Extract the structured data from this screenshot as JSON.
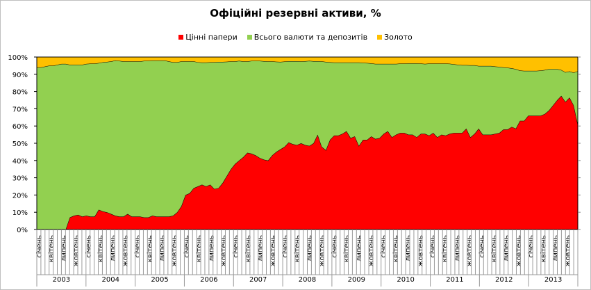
{
  "chart_data": {
    "type": "area",
    "stacked": "percent",
    "title": "Офіційні резервні активи, %",
    "xlabel": "",
    "ylabel": "",
    "ylim": [
      0,
      100
    ],
    "y_ticks": [
      "0%",
      "10%",
      "20%",
      "30%",
      "40%",
      "50%",
      "60%",
      "70%",
      "80%",
      "90%",
      "100%"
    ],
    "month_tick_labels": [
      "січень",
      "квітень",
      "липень",
      "жовтень"
    ],
    "years": [
      "2003",
      "2004",
      "2005",
      "2006",
      "2007",
      "2008",
      "2009",
      "2010",
      "2011",
      "2012",
      "2013"
    ],
    "legend_position": "top",
    "series": [
      {
        "name": "Цінні папери",
        "color": "#FF0000",
        "values": [
          0,
          0,
          0,
          0,
          0,
          0,
          0,
          0,
          7,
          8,
          8.5,
          7.5,
          8,
          7.5,
          7.5,
          11.5,
          10.5,
          10,
          9,
          8,
          7.5,
          7.5,
          9,
          7.5,
          7.5,
          7.5,
          7,
          7,
          8,
          7.5,
          7.5,
          7.5,
          7.5,
          8,
          10,
          13.5,
          20,
          21,
          24,
          25,
          26,
          25,
          26,
          23.5,
          24,
          27,
          31,
          35,
          38,
          40,
          42,
          44.5,
          44,
          43,
          41.5,
          40.5,
          40,
          43,
          45,
          46.5,
          48,
          50.5,
          49.5,
          49,
          50,
          49,
          48.5,
          50,
          55,
          48,
          46,
          52,
          54.5,
          54.5,
          55.5,
          57,
          53,
          54,
          48.5,
          52,
          52,
          54,
          52.5,
          53,
          55.5,
          57,
          53.5,
          55,
          56,
          56,
          55,
          55,
          53.5,
          55.5,
          55.5,
          54.5,
          56,
          53.5,
          55,
          54.5,
          55.5,
          56,
          56,
          56,
          58.5,
          53.5,
          55.5,
          58.5,
          55,
          55,
          55,
          55.5,
          56,
          58,
          58,
          59.5,
          58.5,
          63,
          63,
          66,
          66,
          66,
          66,
          67,
          69,
          72,
          75,
          77.5,
          74,
          76.5,
          72,
          61
        ]
      },
      {
        "name": "Всього валюти та депозитів",
        "color": "#92D050",
        "values": [
          94,
          94,
          94.5,
          95,
          95,
          95.5,
          96,
          96,
          88.5,
          87.5,
          87,
          88,
          88,
          88.7,
          88.7,
          85,
          86.5,
          87.2,
          88.5,
          90,
          90.3,
          90,
          88.5,
          90,
          90,
          90,
          90.8,
          90.8,
          90,
          90.5,
          90.5,
          90.5,
          90,
          89,
          87,
          84,
          77.5,
          76.5,
          73.5,
          72,
          70.8,
          71.8,
          71,
          73.5,
          73.2,
          70.2,
          66.3,
          62.5,
          59.5,
          57.8,
          55.5,
          53,
          53.8,
          54.8,
          56.3,
          57.1,
          57.5,
          54.5,
          52.3,
          50.7,
          49.4,
          47.1,
          48.1,
          48.6,
          47.5,
          48.6,
          49.3,
          47.6,
          42.6,
          49.5,
          51.2,
          45,
          42.3,
          42.3,
          41.3,
          39.8,
          43.8,
          42.8,
          48.3,
          44.6,
          44.5,
          42.3,
          43.5,
          43,
          40.5,
          39,
          42.5,
          41,
          40.2,
          40.2,
          41.3,
          41.3,
          42.8,
          40.7,
          40.5,
          41.7,
          40.2,
          42.7,
          41.2,
          41.7,
          40.6,
          39.8,
          39.5,
          39.3,
          36.8,
          41.7,
          39.7,
          36.3,
          39.8,
          39.8,
          39.8,
          39,
          38.3,
          36,
          35.8,
          34,
          34.5,
          29.2,
          29,
          26,
          26,
          26,
          26.2,
          25.5,
          24,
          21,
          18,
          15,
          17.2,
          15.2,
          19,
          30.8
        ]
      },
      {
        "name": "Золото",
        "color": "#FFC000",
        "values": [
          6,
          6,
          5.5,
          5,
          5,
          4.5,
          4,
          4,
          4.5,
          4.5,
          4.5,
          4.5,
          4,
          3.8,
          3.8,
          3.5,
          3,
          2.8,
          2.5,
          2,
          2.2,
          2.5,
          2.5,
          2.5,
          2.5,
          2.5,
          2.2,
          2.2,
          2,
          2,
          2,
          2,
          2.5,
          3,
          3,
          2.5,
          2.5,
          2.5,
          2.5,
          3,
          3.2,
          3.2,
          3,
          3,
          2.8,
          2.8,
          2.7,
          2.5,
          2.5,
          2.2,
          2.5,
          2.5,
          2.2,
          2.2,
          2.2,
          2.4,
          2.5,
          2.5,
          2.7,
          2.8,
          2.6,
          2.4,
          2.4,
          2.4,
          2.5,
          2.4,
          2.2,
          2.4,
          2.4,
          2.5,
          2.8,
          3,
          3.2,
          3.2,
          3.2,
          3.2,
          3.2,
          3.2,
          3.2,
          3.4,
          3.5,
          3.7,
          4,
          4,
          4,
          4,
          4,
          4,
          3.8,
          3.8,
          3.7,
          3.7,
          3.7,
          3.8,
          4,
          3.8,
          3.8,
          3.8,
          3.8,
          3.8,
          3.9,
          4.2,
          4.5,
          4.7,
          4.7,
          4.8,
          4.8,
          5.2,
          5.2,
          5.2,
          5.2,
          5.5,
          5.7,
          6,
          6.2,
          6.5,
          7,
          7.8,
          8,
          8,
          8,
          8,
          7.8,
          7.5,
          7,
          7,
          7,
          7.5,
          8.8,
          8.3,
          9,
          8.2
        ]
      }
    ]
  }
}
